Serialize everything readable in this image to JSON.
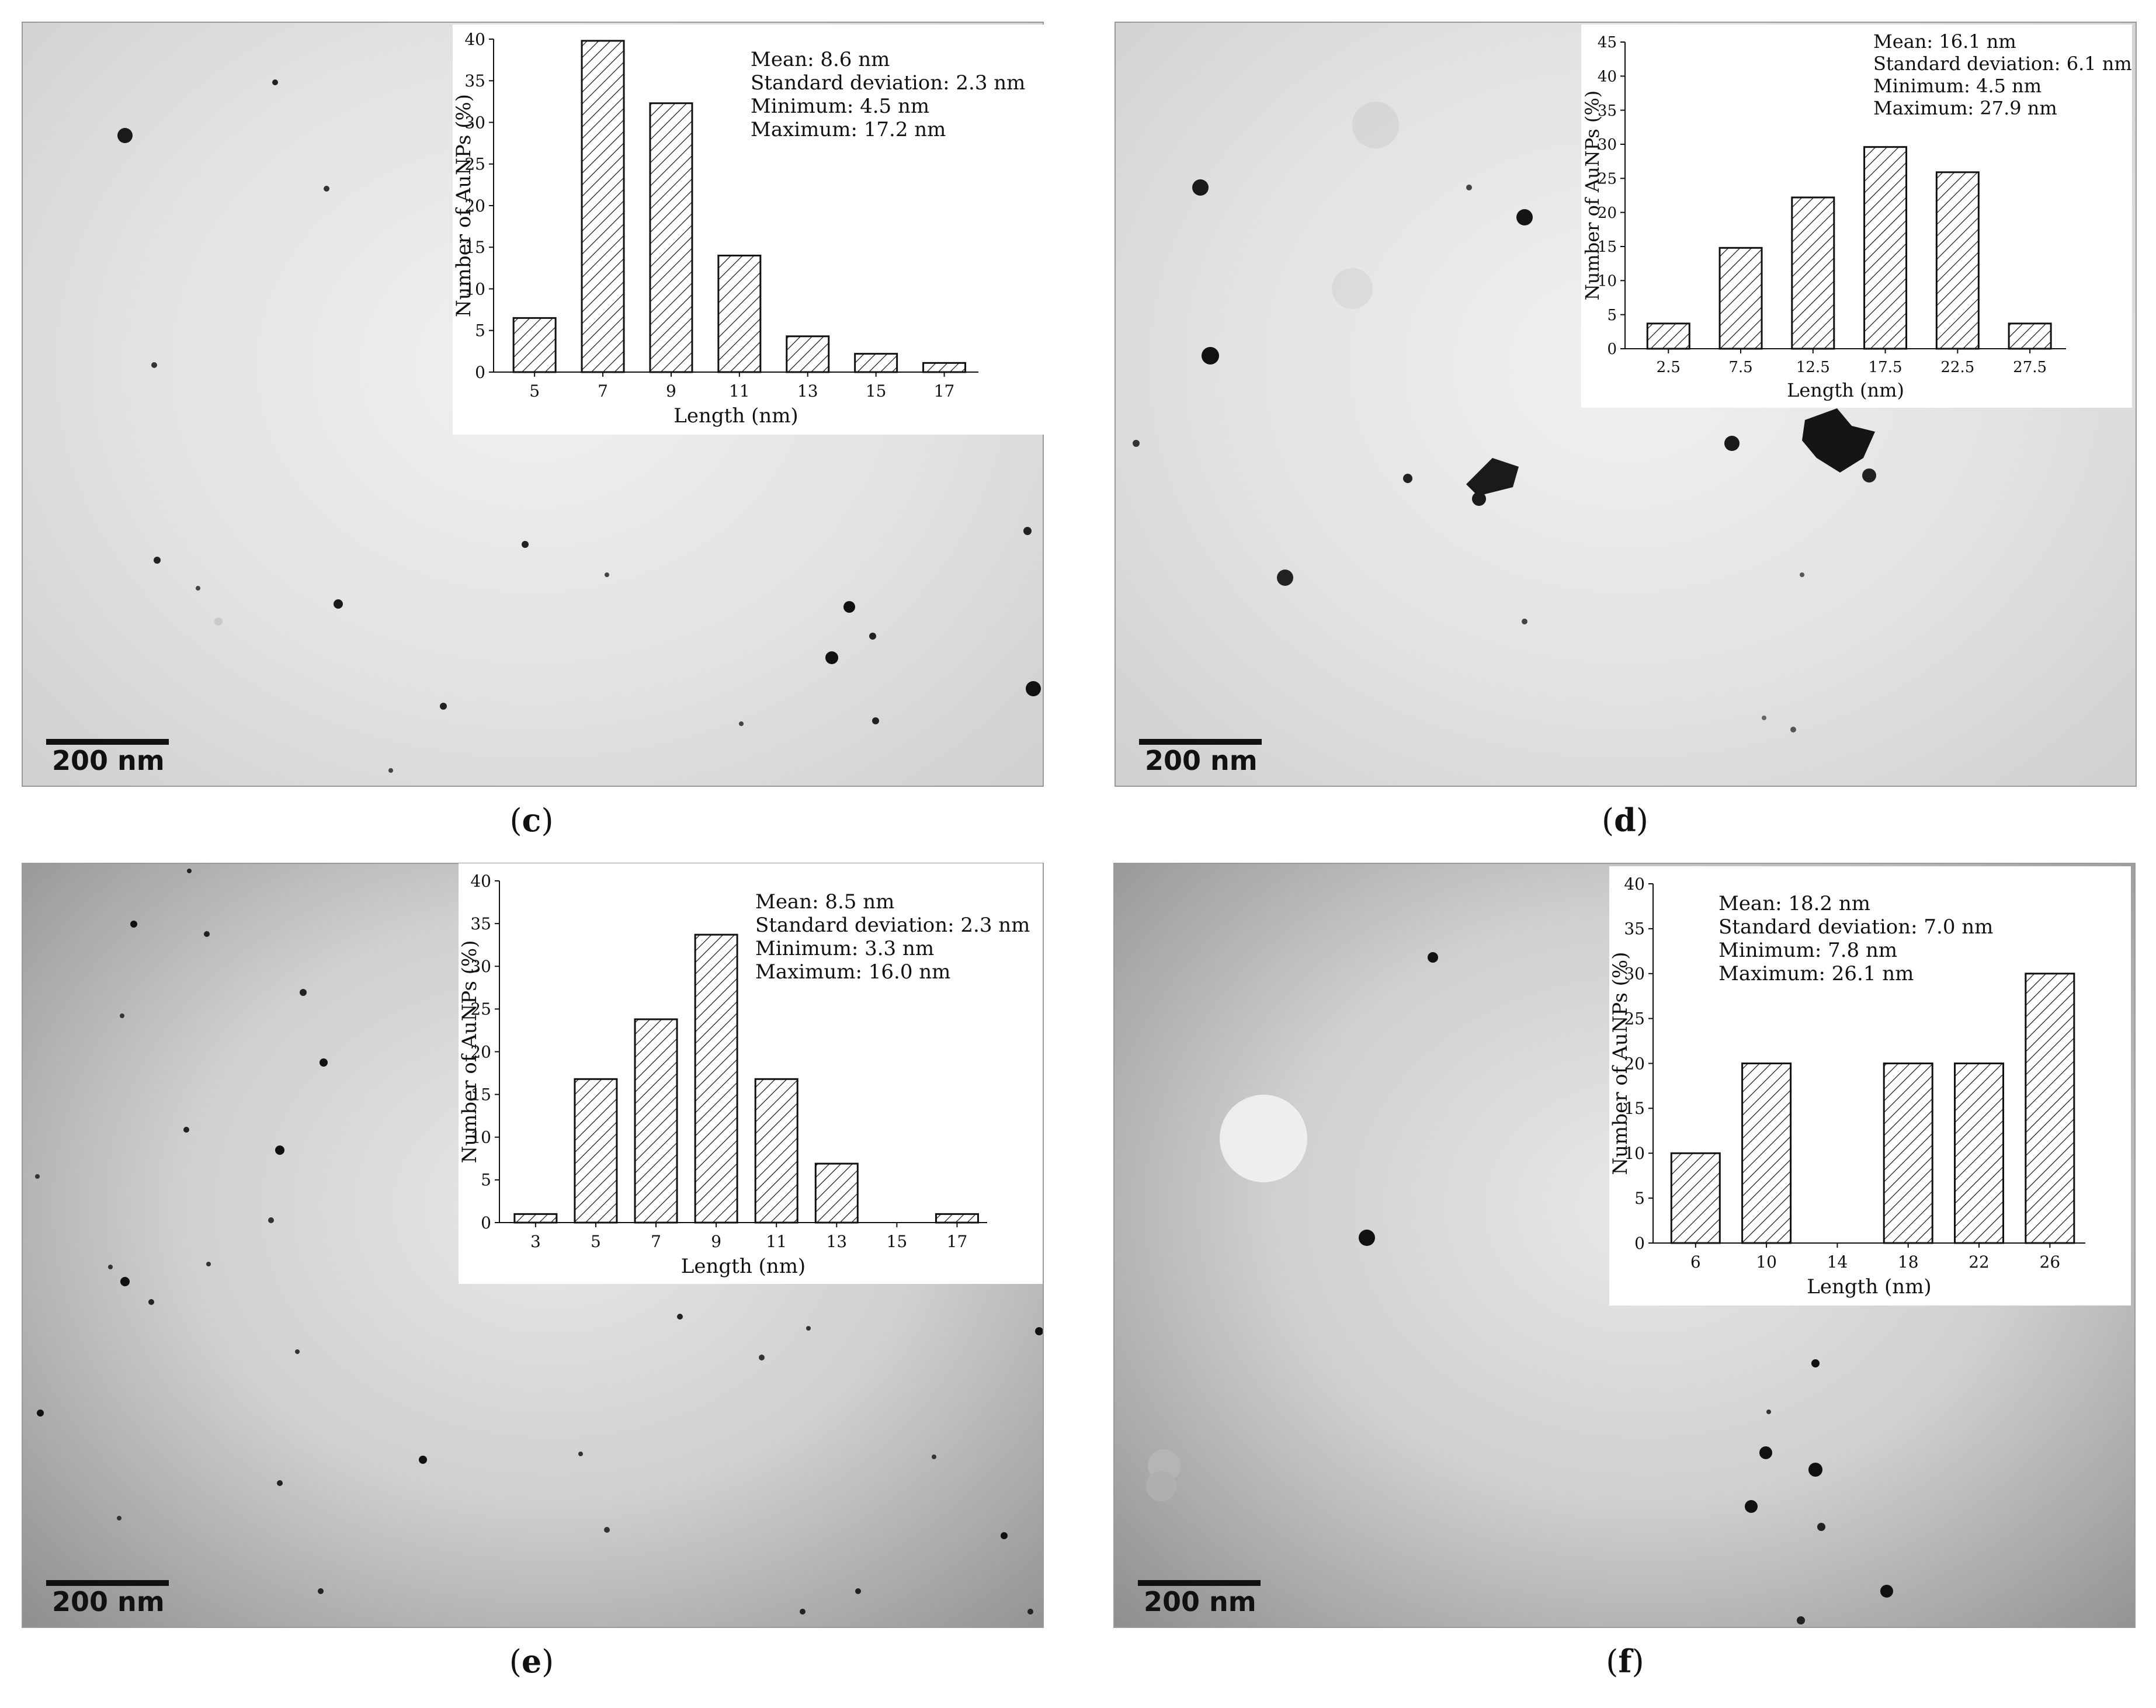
{
  "panels": [
    {
      "id": "c",
      "caption": "c",
      "scale_bar": "200 nm",
      "stats": [
        "Mean: 8.6 nm",
        "Standard deviation: 2.3 nm",
        "Minimum: 4.5 nm",
        "Maximum: 17.2 nm"
      ]
    },
    {
      "id": "d",
      "caption": "d",
      "scale_bar": "200 nm",
      "stats": [
        "Mean: 16.1 nm",
        "Standard deviation: 6.1 nm",
        "Minimum: 4.5 nm",
        "Maximum: 27.9 nm"
      ]
    },
    {
      "id": "e",
      "caption": "e",
      "scale_bar": "200 nm",
      "stats": [
        "Mean: 8.5 nm",
        "Standard deviation: 2.3 nm",
        "Minimum: 3.3 nm",
        "Maximum: 16.0 nm"
      ]
    },
    {
      "id": "f",
      "caption": "f",
      "scale_bar": "200 nm",
      "stats": [
        "Mean: 18.2 nm",
        "Standard deviation: 7.0 nm",
        "Minimum: 7.8 nm",
        "Maximum: 26.1 nm"
      ]
    }
  ],
  "chart_data": [
    {
      "type": "bar",
      "panel": "c",
      "categories": [
        "5",
        "7",
        "9",
        "11",
        "13",
        "15",
        "17"
      ],
      "values": [
        6.5,
        39.8,
        32.3,
        14.0,
        4.3,
        2.2,
        1.1
      ],
      "xlabel": "Length (nm)",
      "ylabel": "Number of AuNPs (%)",
      "ylim": [
        0,
        40
      ],
      "yticks": [
        0,
        5,
        10,
        15,
        20,
        25,
        30,
        35,
        40
      ],
      "grid": false
    },
    {
      "type": "bar",
      "panel": "d",
      "categories": [
        "2.5",
        "7.5",
        "12.5",
        "17.5",
        "22.5",
        "27.5"
      ],
      "values": [
        3.7,
        14.8,
        22.2,
        29.6,
        25.9,
        3.7
      ],
      "xlabel": "Length (nm)",
      "ylabel": "Number of AuNPs (%)",
      "ylim": [
        0,
        45
      ],
      "yticks": [
        0,
        5,
        10,
        15,
        20,
        25,
        30,
        35,
        40,
        45
      ],
      "grid": false
    },
    {
      "type": "bar",
      "panel": "e",
      "categories": [
        "3",
        "5",
        "7",
        "9",
        "11",
        "13",
        "15",
        "17"
      ],
      "values": [
        1.0,
        16.8,
        23.8,
        33.7,
        16.8,
        6.9,
        0,
        1.0
      ],
      "xlabel": "Length (nm)",
      "ylabel": "Number of AuNPs (%)",
      "ylim": [
        0,
        40
      ],
      "yticks": [
        0,
        5,
        10,
        15,
        20,
        25,
        30,
        35,
        40
      ],
      "grid": false
    },
    {
      "type": "bar",
      "panel": "f",
      "categories": [
        "6",
        "10",
        "14",
        "18",
        "22",
        "26"
      ],
      "values": [
        10,
        20,
        0,
        20,
        20,
        30
      ],
      "xlabel": "Length (nm)",
      "ylabel": "Number of AuNPs (%)",
      "ylim": [
        0,
        40
      ],
      "yticks": [
        0,
        5,
        10,
        15,
        20,
        25,
        30,
        35,
        40
      ],
      "grid": false
    }
  ]
}
